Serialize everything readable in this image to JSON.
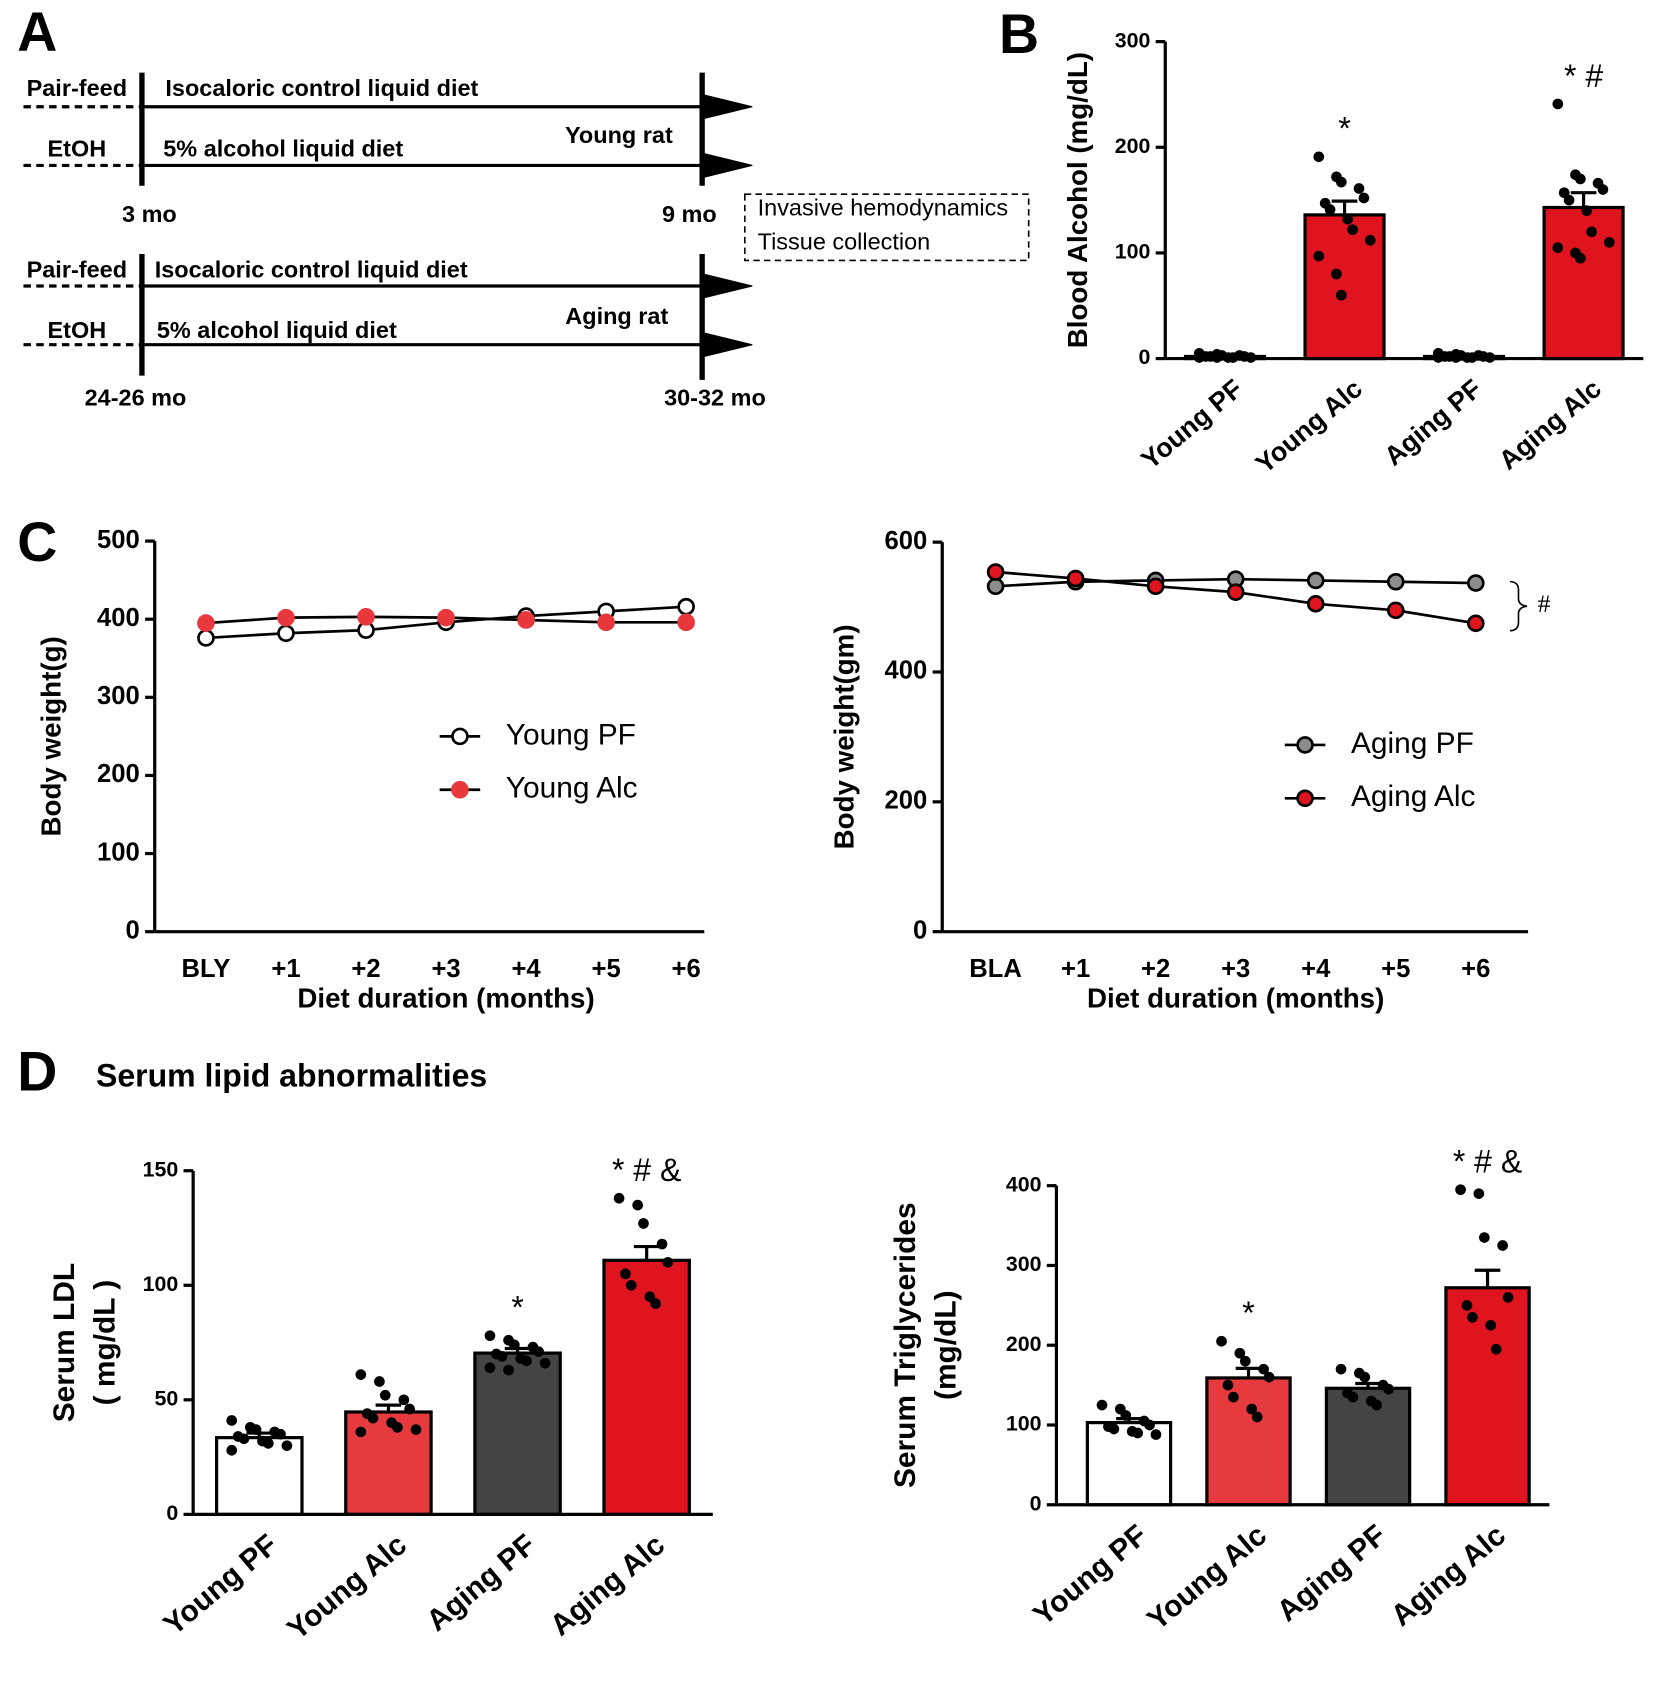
{
  "diagram": {
    "label": "A",
    "timelines": [
      {
        "rows": [
          {
            "group": "Pair-feed",
            "diet": "Isocaloric control liquid diet"
          },
          {
            "group": "EtOH",
            "diet": "5% alcohol liquid diet"
          }
        ],
        "cohort": "Young rat",
        "start": "3 mo",
        "end": "9 mo"
      },
      {
        "rows": [
          {
            "group": "Pair-feed",
            "diet": "Isocaloric control liquid diet"
          },
          {
            "group": "EtOH",
            "diet": "5% alcohol liquid diet"
          }
        ],
        "cohort": "Aging rat",
        "start": "24-26 mo",
        "end": "30-32 mo"
      }
    ],
    "endpoint": [
      "Invasive hemodynamics",
      "Tissue collection"
    ]
  },
  "chart_data": [
    {
      "type": "bar",
      "label": "B",
      "ylabel": "Blood Alcohol (mg/dL)",
      "categories": [
        "Young PF",
        "Young Alc",
        "Aging PF",
        "Aging Alc"
      ],
      "values": [
        2,
        136,
        2,
        143
      ],
      "errors": [
        1,
        13,
        1,
        14
      ],
      "colors": [
        "#ffffff",
        "#e0141e",
        "#ffffff",
        "#e0141e"
      ],
      "points": [
        [
          5,
          4,
          3,
          3,
          2,
          2,
          2,
          1,
          1,
          1,
          1,
          1
        ],
        [
          191,
          172,
          167,
          161,
          152,
          147,
          141,
          132,
          122,
          112,
          97,
          80,
          60
        ],
        [
          5,
          4,
          3,
          3,
          2,
          2,
          2,
          1,
          1,
          1,
          1,
          1
        ],
        [
          241,
          174,
          170,
          166,
          160,
          157,
          150,
          140,
          120,
          110,
          105,
          100,
          95
        ]
      ],
      "annotations": [
        {
          "category": "Young Alc",
          "text": "*"
        },
        {
          "category": "Aging Alc",
          "text": "* #"
        }
      ],
      "ylim": [
        0,
        300
      ],
      "yticks": [
        0,
        100,
        200,
        300
      ]
    },
    {
      "type": "line",
      "label": "C",
      "xlabel": "Diet duration (months)",
      "ylabel": "Body weight(g)",
      "categories": [
        "BLY",
        "+1",
        "+2",
        "+3",
        "+4",
        "+5",
        "+6"
      ],
      "series": [
        {
          "name": "Young PF",
          "color": "#ffffff",
          "edge": "#000000",
          "values": [
            376,
            382,
            386,
            396,
            404,
            410,
            416
          ]
        },
        {
          "name": "Young Alc",
          "color": "#e8383d",
          "edge": "#e8383d",
          "values": [
            395,
            402,
            403,
            402,
            399,
            396,
            396
          ]
        }
      ],
      "legend": "center-right",
      "ylim": [
        0,
        500
      ],
      "yticks": [
        0,
        100,
        200,
        300,
        400,
        500
      ]
    },
    {
      "type": "line",
      "xlabel": "Diet duration (months)",
      "ylabel": "Body weight(gm)",
      "categories": [
        "BLA",
        "+1",
        "+2",
        "+3",
        "+4",
        "+5",
        "+6"
      ],
      "series": [
        {
          "name": "Aging PF",
          "color": "#8c8c8c",
          "edge": "#000000",
          "values": [
            532,
            539,
            541,
            543,
            541,
            539,
            537
          ]
        },
        {
          "name": "Aging Alc",
          "color": "#e0141e",
          "edge": "#000000",
          "values": [
            554,
            544,
            532,
            523,
            505,
            495,
            475
          ]
        }
      ],
      "annotations": [
        {
          "text": "#"
        }
      ],
      "legend": "center-right",
      "ylim": [
        0,
        600
      ],
      "yticks": [
        0,
        200,
        400,
        600
      ]
    },
    {
      "type": "bar",
      "label": "D",
      "title": "Serum lipid abnormalities",
      "ylabel": [
        "Serum LDL",
        "( mg/dL )"
      ],
      "categories": [
        "Young PF",
        "Young Alc",
        "Aging PF",
        "Aging Alc"
      ],
      "values": [
        33.5,
        44.7,
        70.4,
        110.9
      ],
      "errors": [
        2,
        3,
        2,
        6
      ],
      "colors": [
        "#ffffff",
        "#e63a3f",
        "#444444",
        "#e0141e"
      ],
      "points": [
        [
          41,
          38,
          37,
          36,
          35,
          34,
          33,
          32,
          31,
          30,
          28
        ],
        [
          61,
          58,
          52,
          50,
          46,
          44,
          42,
          40,
          38,
          37,
          36
        ],
        [
          78,
          76,
          74,
          73,
          71,
          70,
          69,
          68,
          67,
          66,
          64,
          63
        ],
        [
          138,
          135,
          127,
          118,
          110,
          105,
          100,
          95,
          92
        ]
      ],
      "annotations": [
        {
          "category": "Aging PF",
          "text": "*"
        },
        {
          "category": "Aging Alc",
          "text": "* # &"
        }
      ],
      "ylim": [
        0,
        150
      ],
      "yticks": [
        0,
        50,
        100,
        150
      ]
    },
    {
      "type": "bar",
      "ylabel": [
        "Serum Triglycerides",
        "(mg/dL)"
      ],
      "categories": [
        "Young PF",
        "Young Alc",
        "Aging PF",
        "Aging Alc"
      ],
      "values": [
        103,
        159,
        146,
        272
      ],
      "errors": [
        5,
        12,
        6,
        22
      ],
      "colors": [
        "#ffffff",
        "#e63a3f",
        "#444444",
        "#e0141e"
      ],
      "points": [
        [
          125,
          120,
          112,
          105,
          100,
          98,
          95,
          92,
          90,
          88
        ],
        [
          205,
          190,
          180,
          170,
          160,
          150,
          135,
          120,
          110
        ],
        [
          170,
          165,
          160,
          150,
          145,
          140,
          135,
          130,
          125
        ],
        [
          395,
          390,
          335,
          325,
          260,
          250,
          235,
          225,
          195
        ]
      ],
      "annotations": [
        {
          "category": "Young Alc",
          "text": "*"
        },
        {
          "category": "Aging Alc",
          "text": "* # &"
        }
      ],
      "ylim": [
        0,
        400
      ],
      "yticks": [
        0,
        100,
        200,
        300,
        400
      ]
    }
  ]
}
